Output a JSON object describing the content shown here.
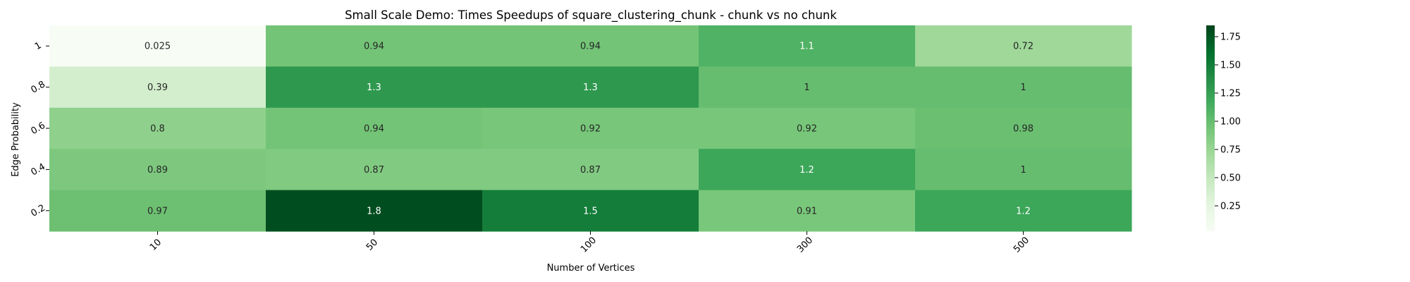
{
  "chart_data": {
    "type": "heatmap",
    "title": "Small Scale Demo: Times Speedups of square_clustering_chunk - chunk vs no chunk",
    "xlabel": "Number of Vertices",
    "ylabel": "Edge Probability",
    "x_categories": [
      "10",
      "50",
      "100",
      "300",
      "500"
    ],
    "y_categories": [
      "1",
      "0.8",
      "0.6",
      "0.4",
      "0.2"
    ],
    "values": [
      [
        0.025,
        0.94,
        0.94,
        1.1,
        0.72
      ],
      [
        0.39,
        1.3,
        1.3,
        1,
        1
      ],
      [
        0.8,
        0.94,
        0.92,
        0.92,
        0.98
      ],
      [
        0.89,
        0.87,
        0.87,
        1.2,
        1
      ],
      [
        0.97,
        1.8,
        1.5,
        0.91,
        1.2
      ]
    ],
    "annotations": [
      [
        "0.025",
        "0.94",
        "0.94",
        "1.1",
        "0.72"
      ],
      [
        "0.39",
        "1.3",
        "1.3",
        "1",
        "1"
      ],
      [
        "0.8",
        "0.94",
        "0.92",
        "0.92",
        "0.98"
      ],
      [
        "0.89",
        "0.87",
        "0.87",
        "1.2",
        "1"
      ],
      [
        "0.97",
        "1.8",
        "1.5",
        "0.91",
        "1.2"
      ]
    ],
    "colormap": "Greens",
    "colorbar": {
      "range": [
        0.025,
        1.85
      ],
      "ticks": [
        0.25,
        0.5,
        0.75,
        1.0,
        1.25,
        1.5,
        1.75
      ],
      "tick_labels": [
        "0.25",
        "0.50",
        "0.75",
        "1.00",
        "1.25",
        "1.50",
        "1.75"
      ]
    },
    "grid": false,
    "legend": "colorbar-right"
  }
}
